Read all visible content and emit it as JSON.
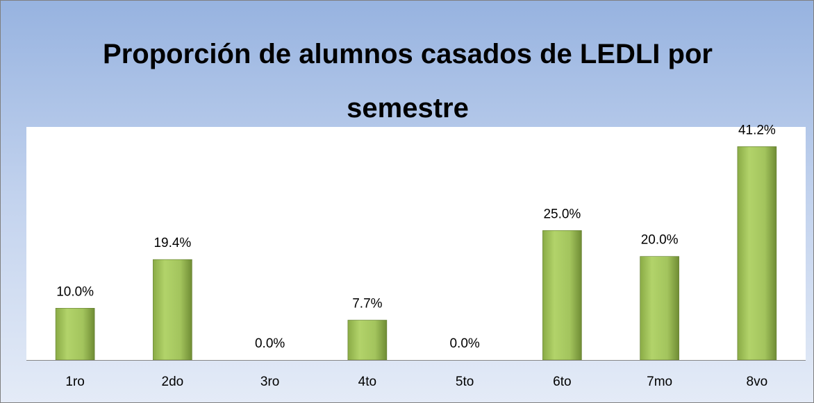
{
  "chart_data": {
    "type": "bar",
    "title": "Proporción de alumnos casados de LEDLI por semestre",
    "categories": [
      "1ro",
      "2do",
      "3ro",
      "4to",
      "5to",
      "6to",
      "7mo",
      "8vo"
    ],
    "values": [
      10.0,
      19.4,
      0.0,
      7.7,
      0.0,
      25.0,
      20.0,
      41.2
    ],
    "value_labels": [
      "10.0%",
      "19.4%",
      "0.0%",
      "7.7%",
      "0.0%",
      "25.0%",
      "20.0%",
      "41.2%"
    ],
    "color": "#9bbb59",
    "ylim": [
      0,
      45
    ]
  }
}
